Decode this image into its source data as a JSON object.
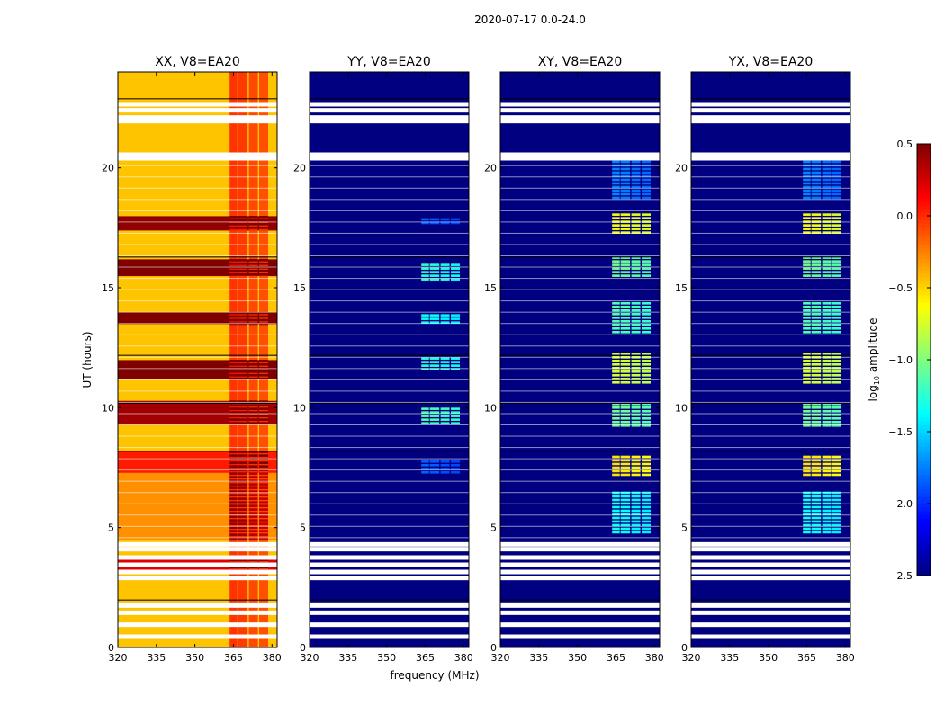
{
  "suptitle": "2020-07-17 0.0-24.0",
  "colors": {
    "background": "#000080",
    "gap": "#ffffff",
    "line": "#000000"
  },
  "chart_data": {
    "type": "heatmap",
    "colormap": "jet",
    "xlabel": "frequency (MHz)",
    "ylabel": "UT (hours)",
    "xlim": [
      320,
      382
    ],
    "ylim": [
      0,
      24
    ],
    "xticks": [
      320,
      335,
      350,
      365,
      380
    ],
    "yticks": [
      0,
      5,
      10,
      15,
      20
    ],
    "colorbar": {
      "label_main": "log",
      "label_sub": "10",
      "label_rest": " amplitude",
      "range": [
        -2.5,
        0.5
      ],
      "ticks": [
        {
          "value": 0.5,
          "label": "0.5"
        },
        {
          "value": 0.0,
          "label": "0.0"
        },
        {
          "value": -0.5,
          "label": "−0.5"
        },
        {
          "value": -1.0,
          "label": "−1.0"
        },
        {
          "value": -1.5,
          "label": "−1.5"
        },
        {
          "value": -2.0,
          "label": "−2.0"
        },
        {
          "value": -2.5,
          "label": "−2.5"
        }
      ]
    },
    "gaps_hours": [
      0.45,
      0.95,
      1.45,
      1.75,
      2.9,
      3.15,
      3.45,
      3.75,
      4.1,
      4.3,
      20.4,
      20.55,
      21.95,
      22.1,
      22.4,
      22.65
    ],
    "panels": [
      {
        "title": "XX, V8=EA20",
        "base": -0.45,
        "band_boost": 0.5,
        "band_dark_boost": 0.75,
        "rows": [
          {
            "start": 4.5,
            "end": 7.3,
            "value": -0.3
          },
          {
            "start": 7.3,
            "end": 8.2,
            "value": 0.05
          },
          {
            "start": 9.3,
            "end": 10.3,
            "value": 0.4
          },
          {
            "start": 11.2,
            "end": 12.0,
            "value": 0.5
          },
          {
            "start": 13.5,
            "end": 14.0,
            "value": 0.55
          },
          {
            "start": 15.5,
            "end": 16.2,
            "value": 0.6
          },
          {
            "start": 17.4,
            "end": 18.0,
            "value": 0.45
          },
          {
            "start": 3.2,
            "end": 3.7,
            "value": 0.2
          }
        ]
      },
      {
        "title": "YY, V8=EA20",
        "base": -2.6,
        "band_boost": 0,
        "band_dark_boost": 0,
        "rows": [
          {
            "start": 7.3,
            "end": 7.8,
            "value": -1.9
          },
          {
            "start": 9.4,
            "end": 10.0,
            "value": -1.2
          },
          {
            "start": 11.5,
            "end": 12.1,
            "value": -1.3
          },
          {
            "start": 13.5,
            "end": 13.9,
            "value": -1.4
          },
          {
            "start": 15.3,
            "end": 16.0,
            "value": -1.3
          },
          {
            "start": 17.6,
            "end": 17.9,
            "value": -1.9
          }
        ]
      },
      {
        "title": "XY, V8=EA20",
        "base": -2.6,
        "band_boost": 0,
        "band_dark_boost": 0,
        "rows": [
          {
            "start": 4.8,
            "end": 6.5,
            "value": -1.4
          },
          {
            "start": 7.2,
            "end": 8.0,
            "value": -0.6
          },
          {
            "start": 9.2,
            "end": 10.2,
            "value": -1.1
          },
          {
            "start": 11.0,
            "end": 12.3,
            "value": -0.8
          },
          {
            "start": 13.2,
            "end": 14.4,
            "value": -1.2
          },
          {
            "start": 15.5,
            "end": 16.3,
            "value": -1.1
          },
          {
            "start": 17.3,
            "end": 18.1,
            "value": -0.7
          },
          {
            "start": 18.8,
            "end": 20.3,
            "value": -1.8
          }
        ]
      },
      {
        "title": "YX, V8=EA20",
        "base": -2.6,
        "band_boost": 0,
        "band_dark_boost": 0,
        "rows": [
          {
            "start": 4.8,
            "end": 6.5,
            "value": -1.4
          },
          {
            "start": 7.2,
            "end": 8.0,
            "value": -0.6
          },
          {
            "start": 9.2,
            "end": 10.2,
            "value": -1.1
          },
          {
            "start": 11.0,
            "end": 12.3,
            "value": -0.8
          },
          {
            "start": 13.2,
            "end": 14.4,
            "value": -1.2
          },
          {
            "start": 15.5,
            "end": 16.3,
            "value": -1.1
          },
          {
            "start": 17.3,
            "end": 18.1,
            "value": -0.7
          },
          {
            "start": 18.8,
            "end": 20.3,
            "value": -1.8
          }
        ]
      }
    ],
    "bands_mhz": [
      {
        "start": 363.5,
        "end": 366.5,
        "weight": 1.0
      },
      {
        "start": 366.8,
        "end": 370.5,
        "weight": 0.95
      },
      {
        "start": 371.0,
        "end": 374.5,
        "weight": 0.85
      },
      {
        "start": 375.0,
        "end": 378.5,
        "weight": 0.8
      }
    ]
  }
}
